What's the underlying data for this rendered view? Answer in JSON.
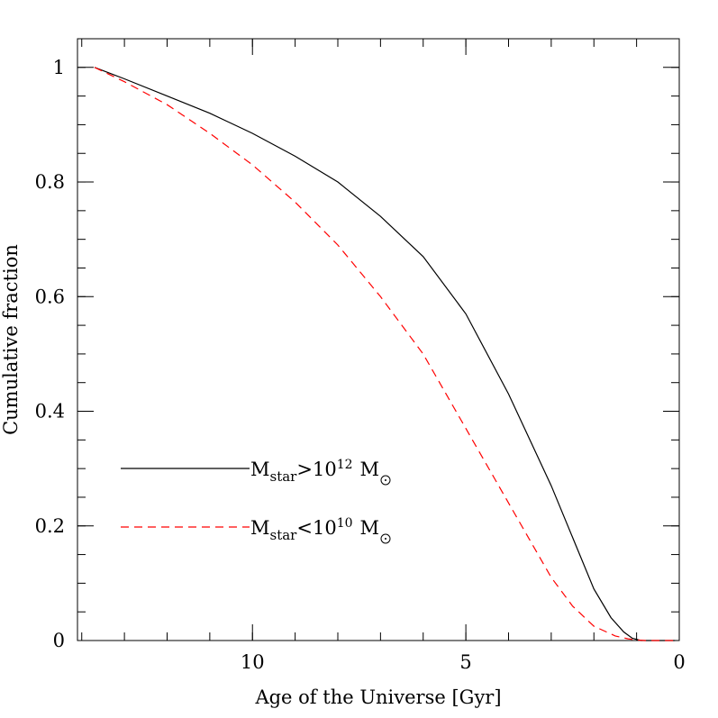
{
  "chart_data": {
    "type": "line",
    "title": "",
    "xlabel": "Age of the Universe [Gyr]",
    "ylabel": "Cumulative fraction",
    "xlim": [
      14.1,
      0
    ],
    "ylim": [
      0,
      1.05
    ],
    "x_ticks": [
      {
        "value": 10,
        "label": "10"
      },
      {
        "value": 5,
        "label": "5"
      },
      {
        "value": 0,
        "label": "0"
      }
    ],
    "x_minor_step": 1,
    "y_ticks": [
      {
        "value": 0,
        "label": "0"
      },
      {
        "value": 0.2,
        "label": "0.2"
      },
      {
        "value": 0.4,
        "label": "0.4"
      },
      {
        "value": 0.6,
        "label": "0.6"
      },
      {
        "value": 0.8,
        "label": "0.8"
      },
      {
        "value": 1,
        "label": "1"
      }
    ],
    "y_minor_step": 0.05,
    "grid": false,
    "legend_position": "lower-left",
    "series": [
      {
        "name": "M_star>10^12 M_sun",
        "legend": {
          "base": "M",
          "sub": "star",
          "mid": ">10",
          "sup": "12",
          "unit": "M"
        },
        "color": "#000000",
        "style": "solid",
        "x": [
          13.7,
          13.0,
          12.0,
          11.0,
          10.0,
          9.0,
          8.0,
          7.0,
          6.0,
          5.0,
          4.0,
          3.0,
          2.0,
          1.6,
          1.3,
          1.1,
          0.9,
          0.5,
          0.1
        ],
        "y": [
          1.0,
          0.98,
          0.95,
          0.92,
          0.885,
          0.845,
          0.8,
          0.74,
          0.67,
          0.57,
          0.43,
          0.27,
          0.09,
          0.04,
          0.015,
          0.004,
          0.0,
          0.0,
          0.0
        ]
      },
      {
        "name": "M_star<10^10 M_sun",
        "legend": {
          "base": "M",
          "sub": "star",
          "mid": "<10",
          "sup": "10",
          "unit": "M"
        },
        "color": "#ff0000",
        "style": "dashed",
        "x": [
          13.7,
          13.0,
          12.0,
          11.0,
          10.0,
          9.0,
          8.0,
          7.0,
          6.0,
          5.0,
          4.0,
          3.0,
          2.5,
          2.0,
          1.5,
          1.2,
          1.0,
          0.8,
          0.5,
          0.1
        ],
        "y": [
          1.0,
          0.975,
          0.935,
          0.885,
          0.83,
          0.765,
          0.69,
          0.6,
          0.5,
          0.37,
          0.24,
          0.11,
          0.06,
          0.025,
          0.008,
          0.003,
          0.001,
          0.0,
          0.0,
          0.0
        ]
      }
    ]
  }
}
